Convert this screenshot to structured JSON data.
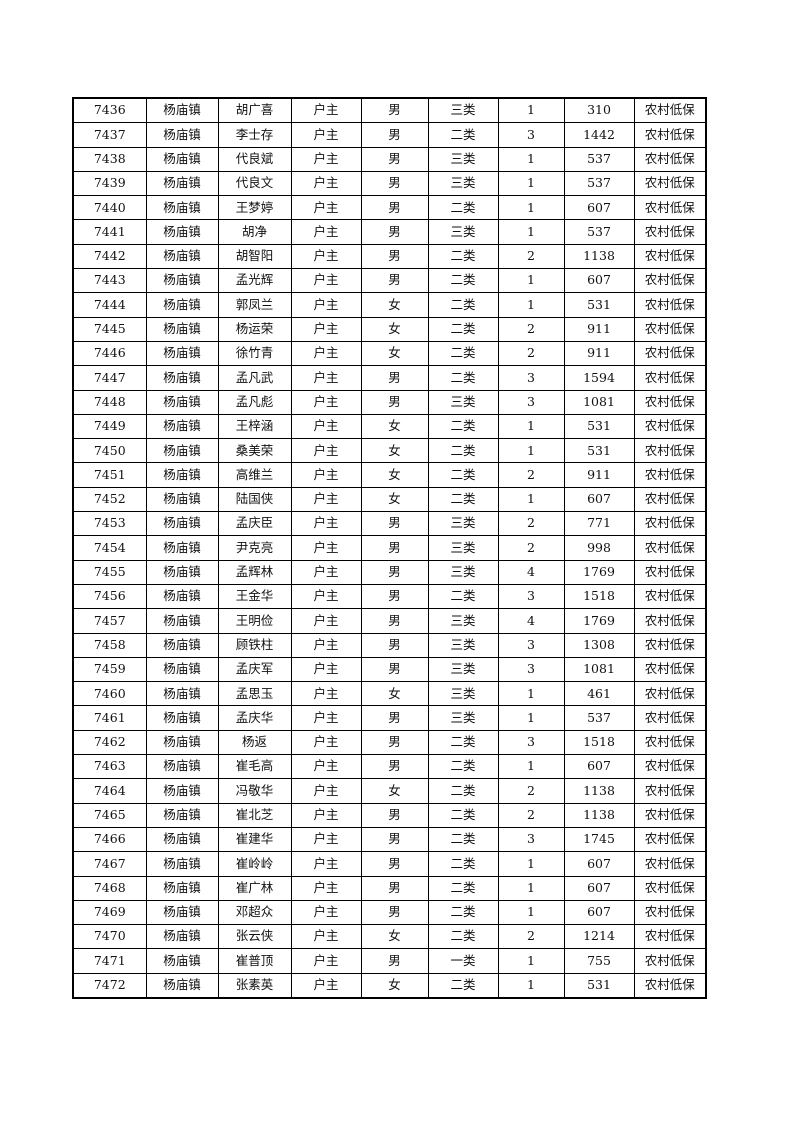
{
  "rows": [
    [
      "7436",
      "杨庙镇",
      "胡广喜",
      "户主",
      "男",
      "三类",
      "1",
      "310",
      "农村低保"
    ],
    [
      "7437",
      "杨庙镇",
      "李士存",
      "户主",
      "男",
      "二类",
      "3",
      "1442",
      "农村低保"
    ],
    [
      "7438",
      "杨庙镇",
      "代良斌",
      "户主",
      "男",
      "三类",
      "1",
      "537",
      "农村低保"
    ],
    [
      "7439",
      "杨庙镇",
      "代良文",
      "户主",
      "男",
      "三类",
      "1",
      "537",
      "农村低保"
    ],
    [
      "7440",
      "杨庙镇",
      "王梦婷",
      "户主",
      "男",
      "二类",
      "1",
      "607",
      "农村低保"
    ],
    [
      "7441",
      "杨庙镇",
      "胡净",
      "户主",
      "男",
      "三类",
      "1",
      "537",
      "农村低保"
    ],
    [
      "7442",
      "杨庙镇",
      "胡智阳",
      "户主",
      "男",
      "二类",
      "2",
      "1138",
      "农村低保"
    ],
    [
      "7443",
      "杨庙镇",
      "孟光辉",
      "户主",
      "男",
      "二类",
      "1",
      "607",
      "农村低保"
    ],
    [
      "7444",
      "杨庙镇",
      "郭凤兰",
      "户主",
      "女",
      "二类",
      "1",
      "531",
      "农村低保"
    ],
    [
      "7445",
      "杨庙镇",
      "杨运荣",
      "户主",
      "女",
      "二类",
      "2",
      "911",
      "农村低保"
    ],
    [
      "7446",
      "杨庙镇",
      "徐竹青",
      "户主",
      "女",
      "二类",
      "2",
      "911",
      "农村低保"
    ],
    [
      "7447",
      "杨庙镇",
      "孟凡武",
      "户主",
      "男",
      "二类",
      "3",
      "1594",
      "农村低保"
    ],
    [
      "7448",
      "杨庙镇",
      "孟凡彪",
      "户主",
      "男",
      "三类",
      "3",
      "1081",
      "农村低保"
    ],
    [
      "7449",
      "杨庙镇",
      "王梓涵",
      "户主",
      "女",
      "二类",
      "1",
      "531",
      "农村低保"
    ],
    [
      "7450",
      "杨庙镇",
      "桑美荣",
      "户主",
      "女",
      "二类",
      "1",
      "531",
      "农村低保"
    ],
    [
      "7451",
      "杨庙镇",
      "高维兰",
      "户主",
      "女",
      "二类",
      "2",
      "911",
      "农村低保"
    ],
    [
      "7452",
      "杨庙镇",
      "陆国侠",
      "户主",
      "女",
      "二类",
      "1",
      "607",
      "农村低保"
    ],
    [
      "7453",
      "杨庙镇",
      "孟庆臣",
      "户主",
      "男",
      "三类",
      "2",
      "771",
      "农村低保"
    ],
    [
      "7454",
      "杨庙镇",
      "尹克亮",
      "户主",
      "男",
      "三类",
      "2",
      "998",
      "农村低保"
    ],
    [
      "7455",
      "杨庙镇",
      "孟辉林",
      "户主",
      "男",
      "三类",
      "4",
      "1769",
      "农村低保"
    ],
    [
      "7456",
      "杨庙镇",
      "王金华",
      "户主",
      "男",
      "二类",
      "3",
      "1518",
      "农村低保"
    ],
    [
      "7457",
      "杨庙镇",
      "王明俭",
      "户主",
      "男",
      "三类",
      "4",
      "1769",
      "农村低保"
    ],
    [
      "7458",
      "杨庙镇",
      "顾铁柱",
      "户主",
      "男",
      "三类",
      "3",
      "1308",
      "农村低保"
    ],
    [
      "7459",
      "杨庙镇",
      "孟庆军",
      "户主",
      "男",
      "三类",
      "3",
      "1081",
      "农村低保"
    ],
    [
      "7460",
      "杨庙镇",
      "孟思玉",
      "户主",
      "女",
      "三类",
      "1",
      "461",
      "农村低保"
    ],
    [
      "7461",
      "杨庙镇",
      "孟庆华",
      "户主",
      "男",
      "三类",
      "1",
      "537",
      "农村低保"
    ],
    [
      "7462",
      "杨庙镇",
      "杨返",
      "户主",
      "男",
      "二类",
      "3",
      "1518",
      "农村低保"
    ],
    [
      "7463",
      "杨庙镇",
      "崔毛高",
      "户主",
      "男",
      "二类",
      "1",
      "607",
      "农村低保"
    ],
    [
      "7464",
      "杨庙镇",
      "冯敬华",
      "户主",
      "女",
      "二类",
      "2",
      "1138",
      "农村低保"
    ],
    [
      "7465",
      "杨庙镇",
      "崔北芝",
      "户主",
      "男",
      "二类",
      "2",
      "1138",
      "农村低保"
    ],
    [
      "7466",
      "杨庙镇",
      "崔建华",
      "户主",
      "男",
      "二类",
      "3",
      "1745",
      "农村低保"
    ],
    [
      "7467",
      "杨庙镇",
      "崔岭岭",
      "户主",
      "男",
      "二类",
      "1",
      "607",
      "农村低保"
    ],
    [
      "7468",
      "杨庙镇",
      "崔广林",
      "户主",
      "男",
      "二类",
      "1",
      "607",
      "农村低保"
    ],
    [
      "7469",
      "杨庙镇",
      "邓超众",
      "户主",
      "男",
      "二类",
      "1",
      "607",
      "农村低保"
    ],
    [
      "7470",
      "杨庙镇",
      "张云侠",
      "户主",
      "女",
      "二类",
      "2",
      "1214",
      "农村低保"
    ],
    [
      "7471",
      "杨庙镇",
      "崔普顶",
      "户主",
      "男",
      "一类",
      "1",
      "755",
      "农村低保"
    ],
    [
      "7472",
      "杨庙镇",
      "张素英",
      "户主",
      "女",
      "二类",
      "1",
      "531",
      "农村低保"
    ]
  ]
}
